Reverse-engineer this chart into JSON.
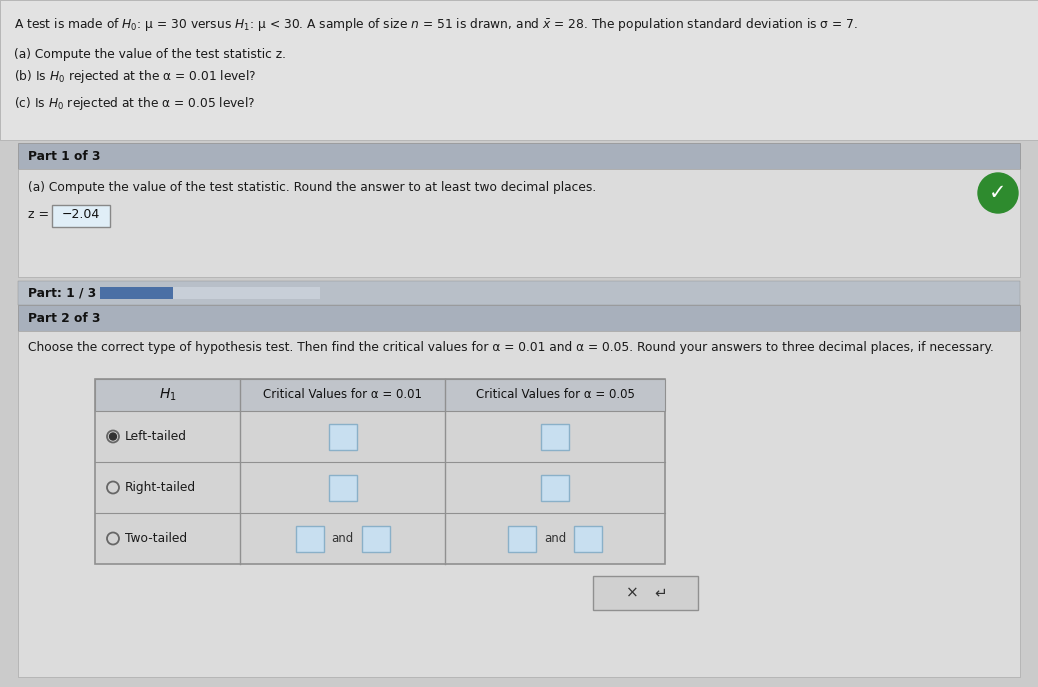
{
  "bg_color": "#cbcbcb",
  "top_panel_bg": "#e2e2e2",
  "part_header_bg": "#a8b0bc",
  "part_content_bg": "#dcdcdc",
  "progress_bar_area_bg": "#b8bfc8",
  "progress_bar_fill": "#4a6fa5",
  "progress_bar_track": "#c8cfd8",
  "checkmark_bg": "#2e8b2e",
  "input_box_bg": "#c8dff0",
  "input_box_border": "#8ab0c8",
  "table_bg": "#d8d8d8",
  "table_header_bg": "#c0c4ca",
  "table_border": "#909090",
  "bottom_btn_bg": "#d0d0d0",
  "bottom_btn_border": "#909090",
  "title_text": "A test is made of $H_0$: μ = 30 versus $H_1$: μ < 30. A sample of size $n$ = 51 is drawn, and $\\bar{x}$ = 28. The population standard deviation is σ = 7.",
  "bullet_a": "(a) Compute the value of the test statistic z.",
  "bullet_b": "(b) Is $H_0$ rejected at the α = 0.01 level?",
  "bullet_c": "(c) Is $H_0$ rejected at the α = 0.05 level?",
  "part1_header": "Part 1 of 3",
  "part1_instruction": "(a) Compute the value of the test statistic. Round the answer to at least two decimal places.",
  "z_value": "−2.04",
  "part_progress_label": "Part: 1 / 3",
  "part2_header": "Part 2 of 3",
  "part2_instruction": "Choose the correct type of hypothesis test. Then find the critical values for α = 0.01 and α = 0.05. Round your answers to three decimal places, if necessary.",
  "table_header_h1": "$H_1$",
  "table_header_cv01": "Critical Values for α = 0.01",
  "table_header_cv05": "Critical Values for α = 0.05",
  "row_left": "Left-tailed",
  "row_right": "Right-tailed",
  "row_two": "Two-tailed",
  "bottom_button_x": "×",
  "bottom_button_undo": "↵"
}
